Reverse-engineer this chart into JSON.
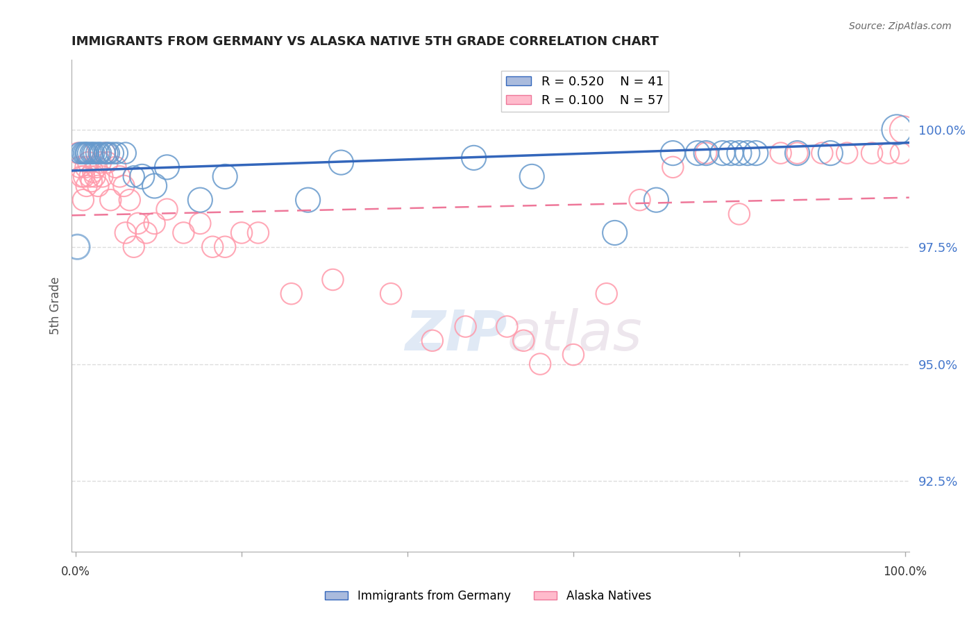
{
  "title": "IMMIGRANTS FROM GERMANY VS ALASKA NATIVE 5TH GRADE CORRELATION CHART",
  "source": "Source: ZipAtlas.com",
  "ylabel": "5th Grade",
  "ytick_values": [
    100.0,
    97.5,
    95.0,
    92.5
  ],
  "ymin": 91.0,
  "ymax": 101.5,
  "xmin": -0.005,
  "xmax": 1.005,
  "blue_r": 0.52,
  "blue_n": 41,
  "pink_r": 0.1,
  "pink_n": 57,
  "legend_label_blue": "Immigrants from Germany",
  "legend_label_pink": "Alaska Natives",
  "blue_color": "#6699cc",
  "pink_color": "#ff99aa",
  "blue_line_color": "#3366bb",
  "pink_line_color": "#ee7799",
  "blue_scatter": {
    "x": [
      0.005,
      0.008,
      0.01,
      0.012,
      0.013,
      0.015,
      0.018,
      0.02,
      0.022,
      0.025,
      0.028,
      0.03,
      0.035,
      0.038,
      0.04,
      0.045,
      0.05,
      0.06,
      0.07,
      0.08,
      0.095,
      0.11,
      0.15,
      0.18,
      0.28,
      0.32,
      0.48,
      0.55,
      0.65,
      0.7,
      0.72,
      0.75,
      0.76,
      0.78,
      0.79,
      0.8,
      0.81,
      0.82,
      0.87,
      0.91,
      0.99
    ],
    "y": [
      99.5,
      99.5,
      99.5,
      99.5,
      99.5,
      99.5,
      99.5,
      99.5,
      99.5,
      99.5,
      99.5,
      99.5,
      99.5,
      99.5,
      99.5,
      99.5,
      99.5,
      99.5,
      99.0,
      99.0,
      98.8,
      99.2,
      98.5,
      99.0,
      98.5,
      99.3,
      99.4,
      99.0,
      97.8,
      98.5,
      99.5,
      99.5,
      99.5,
      99.5,
      99.5,
      99.5,
      99.5,
      99.5,
      99.5,
      99.5,
      100.0
    ],
    "sizes": [
      60,
      60,
      60,
      60,
      60,
      60,
      60,
      60,
      60,
      60,
      60,
      60,
      60,
      60,
      60,
      60,
      60,
      60,
      60,
      80,
      80,
      80,
      80,
      80,
      80,
      80,
      80,
      80,
      80,
      80,
      80,
      80,
      80,
      80,
      80,
      80,
      80,
      80,
      80,
      80,
      120
    ]
  },
  "pink_scatter": {
    "x": [
      0.003,
      0.005,
      0.007,
      0.009,
      0.01,
      0.012,
      0.013,
      0.015,
      0.017,
      0.019,
      0.021,
      0.023,
      0.025,
      0.027,
      0.03,
      0.032,
      0.035,
      0.038,
      0.042,
      0.048,
      0.053,
      0.058,
      0.06,
      0.065,
      0.07,
      0.075,
      0.085,
      0.095,
      0.11,
      0.13,
      0.15,
      0.165,
      0.18,
      0.2,
      0.22,
      0.26,
      0.31,
      0.38,
      0.43,
      0.47,
      0.52,
      0.54,
      0.56,
      0.6,
      0.64,
      0.68,
      0.72,
      0.76,
      0.8,
      0.85,
      0.87,
      0.9,
      0.93,
      0.96,
      0.98,
      0.995,
      0.998
    ],
    "y": [
      99.5,
      99.2,
      99.0,
      98.5,
      99.0,
      99.2,
      98.8,
      99.3,
      99.0,
      98.9,
      99.1,
      99.0,
      99.2,
      98.8,
      99.3,
      99.0,
      99.5,
      99.3,
      98.5,
      99.2,
      99.0,
      98.8,
      97.8,
      98.5,
      97.5,
      98.0,
      97.8,
      98.0,
      98.3,
      97.8,
      98.0,
      97.5,
      97.5,
      97.8,
      97.8,
      96.5,
      96.8,
      96.5,
      95.5,
      95.8,
      95.8,
      95.5,
      95.0,
      95.2,
      96.5,
      98.5,
      99.2,
      99.5,
      98.2,
      99.5,
      99.5,
      99.5,
      99.5,
      99.5,
      99.5,
      99.5,
      100.0
    ],
    "sizes": [
      60,
      60,
      60,
      60,
      60,
      60,
      60,
      60,
      60,
      60,
      60,
      60,
      60,
      60,
      60,
      60,
      60,
      60,
      60,
      60,
      60,
      60,
      60,
      60,
      60,
      60,
      60,
      60,
      60,
      60,
      60,
      60,
      60,
      60,
      60,
      60,
      60,
      60,
      60,
      60,
      60,
      60,
      60,
      60,
      60,
      60,
      60,
      60,
      60,
      60,
      60,
      60,
      60,
      60,
      60,
      60,
      100
    ]
  },
  "watermark_zip": "ZIP",
  "watermark_atlas": "atlas",
  "background_color": "#ffffff",
  "grid_color": "#dddddd",
  "title_color": "#222222",
  "axis_label_color": "#4477cc"
}
